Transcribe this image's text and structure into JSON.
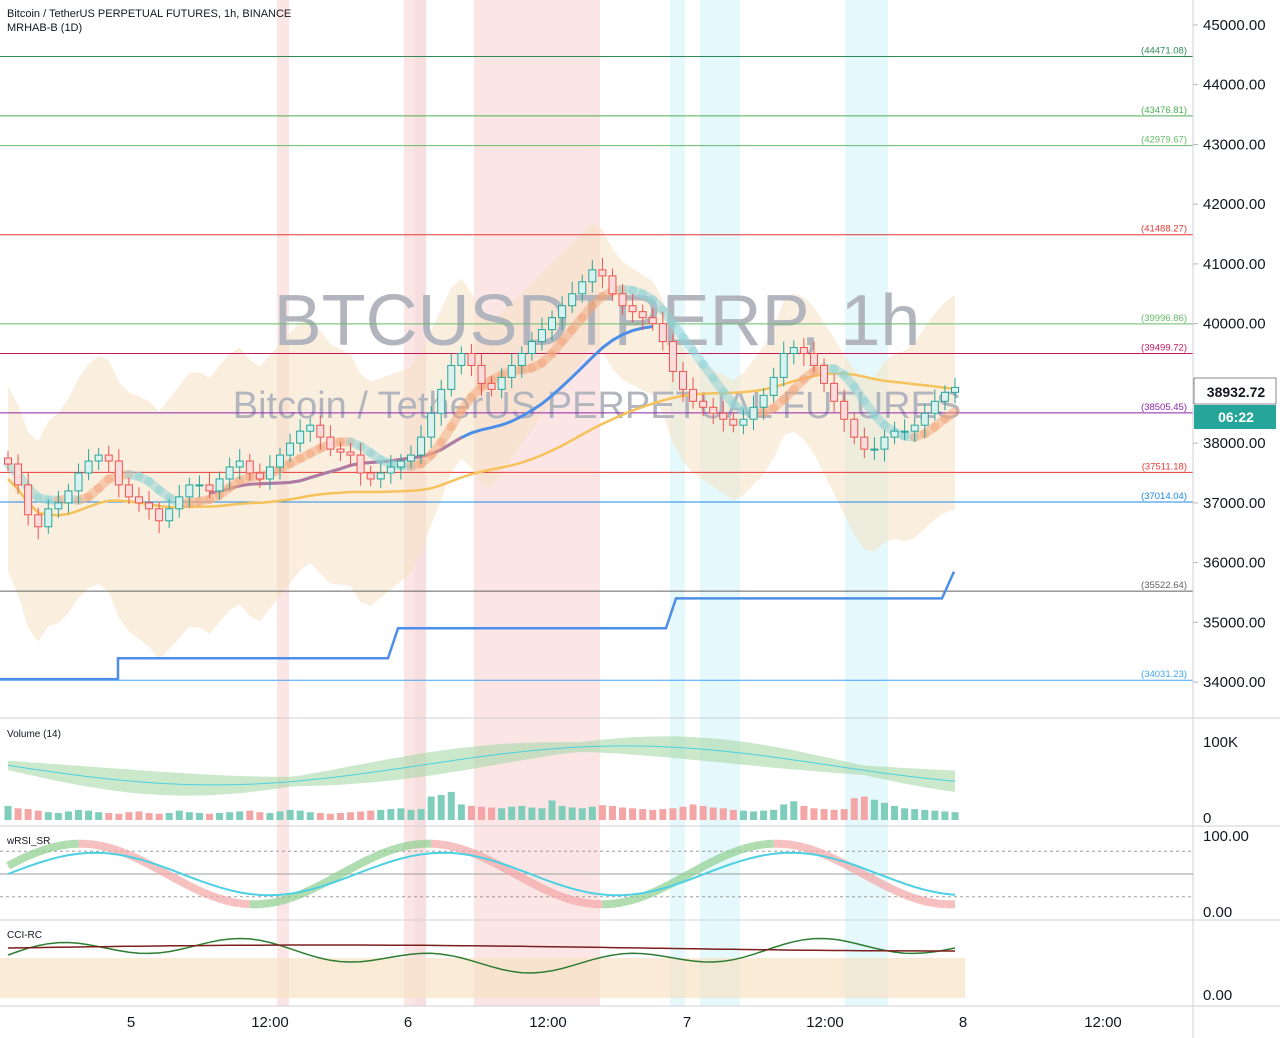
{
  "header": {
    "symbol_line": "Bitcoin / TetherUS PERPETUAL FUTURES, 1h, BINANCE",
    "indicator_line": "MRHAB-B (1D)"
  },
  "watermark": {
    "main": "BTCUSDTPERP, 1h",
    "sub": "Bitcoin / TetherUS PERPETUAL FUTURES"
  },
  "price_tag": {
    "value": "38932.72",
    "countdown": "06:22"
  },
  "colors": {
    "up": "#26a69a",
    "down": "#ef5350",
    "blue": "#4c8ee8",
    "orange": "#f6c25c",
    "purple": "#b07aa1",
    "band": "#f6e2c4",
    "red_hl": "#f7d0d0",
    "cyan_hl": "#cff3f7"
  },
  "panes": {
    "volume_label": "Volume (14)",
    "wrsi_label": "wRSI_SR",
    "cci_label": "CCI-RC"
  },
  "chart_data": {
    "type": "candlestick",
    "title": "Bitcoin / TetherUS PERPETUAL FUTURES, 1h, BINANCE",
    "ylim": [
      33700,
      45250
    ],
    "y_ticks": [
      "45000.00",
      "44000.00",
      "43000.00",
      "42000.00",
      "41000.00",
      "40000.00",
      "39000.00",
      "38000.00",
      "37000.00",
      "36000.00",
      "35000.00",
      "34000.00"
    ],
    "x_ticks": [
      "5",
      "12:00",
      "6",
      "12:00",
      "7",
      "12:00",
      "8",
      "12:00"
    ],
    "levels": [
      {
        "label": "44471.08",
        "value": 44471.08,
        "color": "#2e8b57"
      },
      {
        "label": "43476.81",
        "value": 43476.81,
        "color": "#4caf50"
      },
      {
        "label": "42979.67",
        "value": 42979.67,
        "color": "#66bb6a"
      },
      {
        "label": "41488.27",
        "value": 41488.27,
        "color": "#e53935"
      },
      {
        "label": "39996.86",
        "value": 39996.86,
        "color": "#66bb6a"
      },
      {
        "label": "39499.72",
        "value": 39499.72,
        "color": "#c2185b"
      },
      {
        "label": "38505.45",
        "value": 38505.45,
        "color": "#8e24aa"
      },
      {
        "label": "37511.18",
        "value": 37511.18,
        "color": "#e53935"
      },
      {
        "label": "37014.04",
        "value": 37014.04,
        "color": "#1e88e5"
      },
      {
        "label": "35522.64",
        "value": 35522.64,
        "color": "#616161"
      },
      {
        "label": "34031.23",
        "value": 34031.23,
        "color": "#42a5f5"
      }
    ],
    "closes": [
      37650,
      37300,
      36800,
      36600,
      36900,
      37000,
      37200,
      37500,
      37700,
      37800,
      37700,
      37300,
      37100,
      37000,
      36900,
      36700,
      36900,
      37100,
      37300,
      37300,
      37200,
      37400,
      37600,
      37700,
      37500,
      37400,
      37600,
      37800,
      38000,
      38200,
      38300,
      38100,
      37900,
      37850,
      37800,
      37500,
      37400,
      37500,
      37600,
      37700,
      37800,
      38100,
      38500,
      38900,
      39300,
      39500,
      39300,
      39000,
      38900,
      39100,
      39300,
      39500,
      39700,
      39900,
      40100,
      40300,
      40500,
      40700,
      40900,
      40800,
      40500,
      40300,
      40200,
      40100,
      40000,
      39700,
      39200,
      38900,
      38700,
      38600,
      38500,
      38400,
      38300,
      38400,
      38600,
      38800,
      39100,
      39500,
      39600,
      39500,
      39300,
      39000,
      38700,
      38400,
      38100,
      37900,
      37900,
      38100,
      38200,
      38200,
      38300,
      38500,
      38700,
      38850,
      38932.72
    ],
    "trail_stop": [
      {
        "from": 0,
        "to": 15,
        "value": 34050
      },
      {
        "from": 15,
        "to": 55,
        "value": 34400
      },
      {
        "from": 55,
        "to": 95,
        "value": 34900
      },
      {
        "from": 95,
        "to": 135,
        "value": 35400
      },
      {
        "from": 135,
        "to": 138,
        "value": 35850
      }
    ],
    "volume_ylim": [
      0,
      100000
    ],
    "volume_ticks": [
      "100K",
      "0"
    ],
    "volume": [
      18000,
      15000,
      14000,
      12000,
      10000,
      9000,
      11000,
      13000,
      12000,
      10000,
      9000,
      8000,
      10000,
      11000,
      9000,
      8000,
      9000,
      12000,
      10000,
      9000,
      8000,
      9000,
      10000,
      11000,
      12000,
      10000,
      9000,
      11000,
      13000,
      12000,
      10000,
      9000,
      8000,
      9000,
      10000,
      11000,
      12000,
      13000,
      14000,
      15000,
      13000,
      14000,
      30000,
      32000,
      36000,
      20000,
      18000,
      17000,
      16000,
      15000,
      17000,
      18000,
      16000,
      15000,
      25000,
      18000,
      16000,
      15000,
      17000,
      19000,
      18000,
      16000,
      15000,
      14000,
      13000,
      14000,
      15000,
      17000,
      20000,
      18000,
      16000,
      15000,
      13000,
      12000,
      11000,
      12000,
      13000,
      20000,
      24000,
      18000,
      15000,
      14000,
      13000,
      14000,
      28000,
      30000,
      26000,
      22000,
      18000,
      15000,
      14000,
      13000,
      12000,
      11000,
      10000
    ],
    "rsi_ylim": [
      0,
      100
    ],
    "rsi_ticks": [
      "100.00",
      "0.00"
    ],
    "cci_ticks": [
      "0.00"
    ]
  }
}
